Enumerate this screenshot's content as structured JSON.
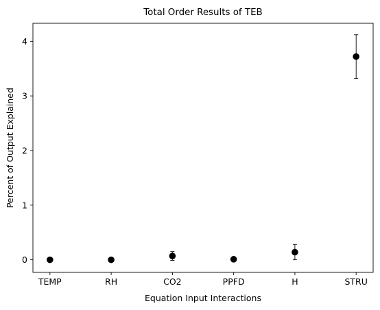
{
  "chart_data": {
    "type": "scatter",
    "title": "Total Order Results of TEB",
    "xlabel": "Equation Input Interactions",
    "ylabel": "Percent of Output Explained",
    "categories": [
      "TEMP",
      "RH",
      "CO2",
      "PPFD",
      "H",
      "STRU"
    ],
    "series": [
      {
        "values": [
          0.0,
          0.0,
          0.07,
          0.01,
          0.14,
          3.72
        ],
        "error": [
          0.0,
          0.0,
          0.08,
          0.0,
          0.14,
          0.4
        ]
      }
    ],
    "ylim": [
      -0.23,
      4.33
    ],
    "yticks": [
      0,
      1,
      2,
      3,
      4
    ],
    "grid": false,
    "legend": "none",
    "marker_color": "#000000"
  }
}
